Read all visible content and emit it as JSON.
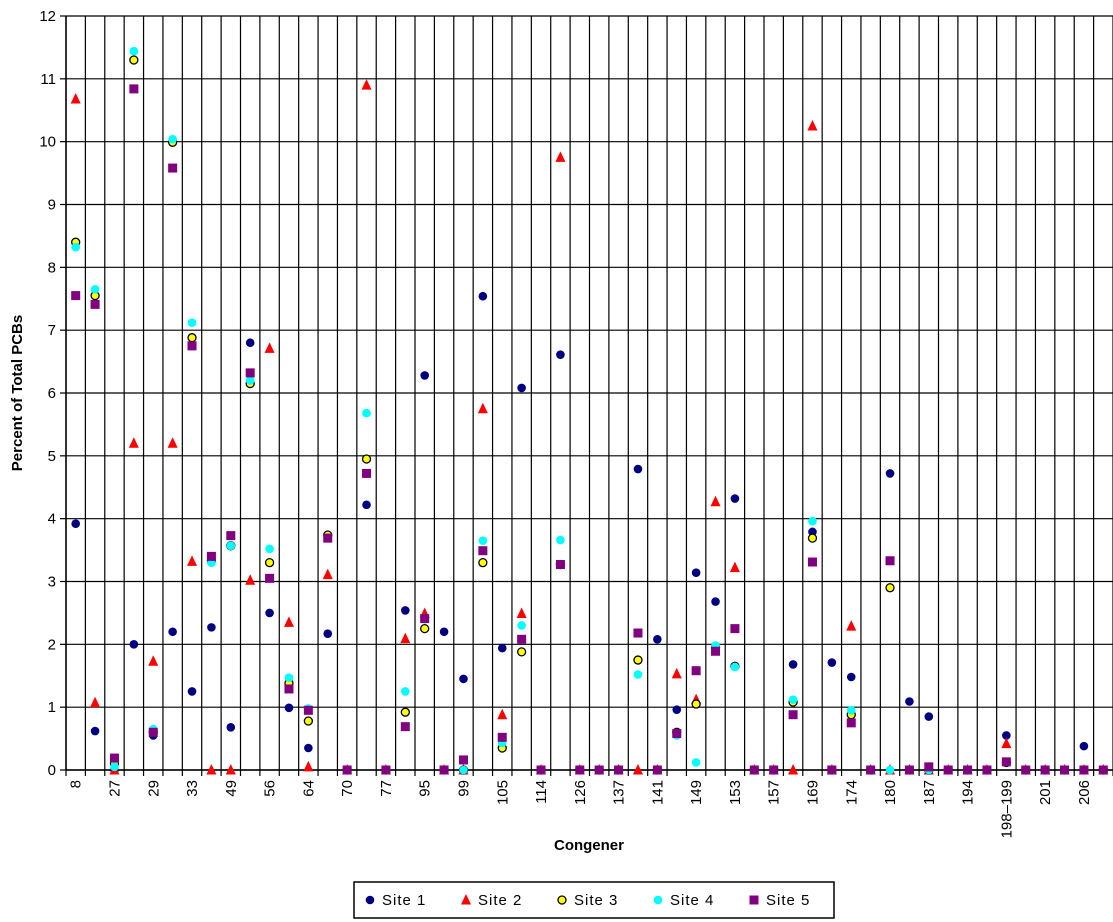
{
  "chart_data": {
    "type": "scatter",
    "xlabel": "Congener",
    "ylabel": "Percent of Total PCBs",
    "ylim": [
      0,
      12
    ],
    "y_ticks": [
      "0",
      "1",
      "2",
      "3",
      "4",
      "5",
      "6",
      "7",
      "8",
      "9",
      "10",
      "11",
      "12"
    ],
    "grid": true,
    "legend_position": "bottom",
    "categories": [
      "8",
      "",
      "27",
      "",
      "29",
      "",
      "33",
      "",
      "49",
      "",
      "56",
      "",
      "64",
      "",
      "70",
      "",
      "77",
      "",
      "95",
      "",
      "99",
      "",
      "105",
      "",
      "114",
      "",
      "126",
      "",
      "137",
      "",
      "141",
      "",
      "149",
      "",
      "153",
      "",
      "157",
      "",
      "169",
      "",
      "174",
      "",
      "180",
      "",
      "187",
      "",
      "194",
      "",
      "198–199",
      "",
      "201",
      "",
      "206",
      ""
    ],
    "series": [
      {
        "name": "Site 1",
        "marker": "circle",
        "color": "#000080",
        "values": [
          3.92,
          0.62,
          0,
          2.0,
          0.55,
          2.2,
          1.25,
          2.27,
          0.68,
          6.8,
          2.5,
          0.99,
          0.35,
          2.17,
          0,
          4.22,
          0,
          2.54,
          6.28,
          2.2,
          1.45,
          7.54,
          1.94,
          6.08,
          0,
          6.61,
          0,
          0,
          0,
          4.79,
          2.08,
          0.96,
          3.14,
          2.68,
          4.32,
          0,
          0,
          1.68,
          3.79,
          1.71,
          1.48,
          0,
          4.72,
          1.09,
          0.85,
          0,
          0,
          0,
          0.55,
          0,
          0,
          0,
          0.38,
          0
        ]
      },
      {
        "name": "Site 2",
        "marker": "triangle",
        "color": "#FF0000",
        "values": [
          10.68,
          1.07,
          0,
          5.2,
          1.73,
          5.2,
          3.32,
          0,
          0,
          3.02,
          6.71,
          2.35,
          0.05,
          3.11,
          0,
          10.9,
          0,
          2.09,
          2.49,
          0,
          0,
          5.75,
          0.88,
          2.49,
          0,
          9.75,
          0,
          0,
          0,
          0,
          0,
          1.53,
          1.12,
          4.27,
          3.22,
          0,
          0,
          0,
          10.25,
          0,
          2.29,
          0,
          0,
          0,
          0,
          0,
          0,
          0,
          0.42,
          0,
          0,
          0,
          0,
          0
        ]
      },
      {
        "name": "Site 3",
        "marker": "hollow-circle",
        "color": "#FFFF00",
        "values": [
          8.4,
          7.55,
          0.1,
          11.3,
          0.6,
          9.99,
          6.88,
          3.33,
          3.57,
          6.15,
          3.3,
          1.38,
          0.78,
          3.74,
          0,
          4.95,
          0,
          0.92,
          2.25,
          0,
          0,
          3.3,
          0.35,
          1.88,
          0,
          3.27,
          0,
          0,
          0,
          1.75,
          0,
          0.6,
          1.05,
          1.95,
          1.65,
          0,
          0,
          1.08,
          3.69,
          0,
          0.88,
          0,
          2.9,
          0,
          0,
          0,
          0,
          0,
          0.12,
          0,
          0,
          0,
          0,
          0
        ]
      },
      {
        "name": "Site 4",
        "marker": "circle",
        "color": "#00FFFF",
        "values": [
          8.32,
          7.65,
          0.05,
          11.44,
          0.65,
          10.04,
          7.12,
          3.3,
          3.57,
          6.2,
          3.52,
          1.47,
          0.98,
          3.7,
          0,
          5.68,
          0,
          1.25,
          2.4,
          0,
          0,
          3.65,
          0.43,
          2.3,
          0,
          3.66,
          0,
          0,
          0,
          1.52,
          0,
          0.55,
          0.12,
          1.98,
          1.64,
          0,
          0,
          1.12,
          3.96,
          0,
          0.95,
          0,
          0,
          0,
          0,
          0,
          0,
          0,
          0.13,
          0,
          0,
          0,
          0,
          0
        ]
      },
      {
        "name": "Site 5",
        "marker": "square",
        "color": "#800080",
        "values": [
          7.55,
          7.41,
          0.19,
          10.84,
          0.6,
          9.58,
          6.75,
          3.4,
          3.73,
          6.32,
          3.05,
          1.29,
          0.95,
          3.69,
          0,
          4.72,
          0,
          0.69,
          2.41,
          0,
          0.16,
          3.49,
          0.52,
          2.08,
          0,
          3.27,
          0,
          0,
          0,
          2.18,
          0,
          0.58,
          1.58,
          1.89,
          2.25,
          0,
          0,
          0.88,
          3.31,
          0,
          0.75,
          0,
          3.33,
          0,
          0.05,
          0,
          0,
          0,
          0.13,
          0,
          0,
          0,
          0,
          0
        ]
      }
    ]
  }
}
